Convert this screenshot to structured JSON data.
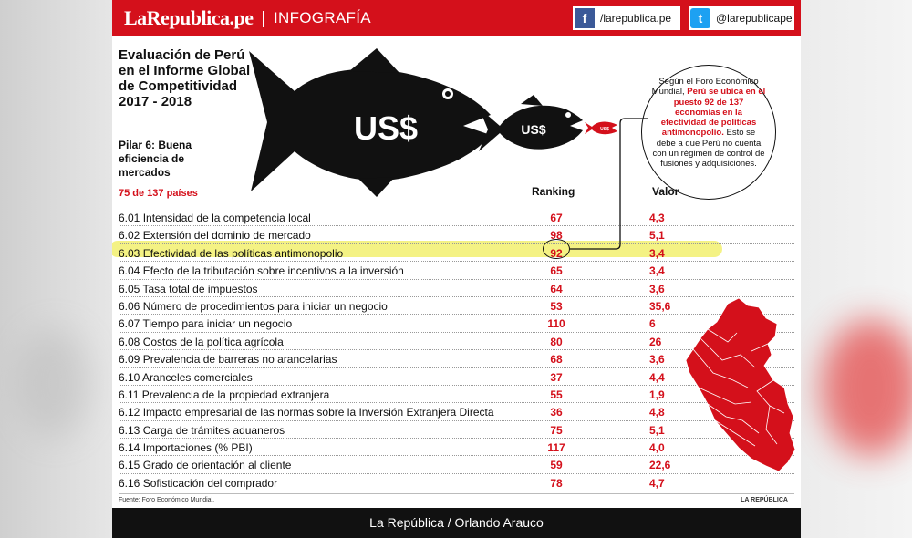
{
  "header": {
    "logo": "LaRepublica.pe",
    "section": "INFOGRAFÍA",
    "facebook_handle": "/larepublica.pe",
    "twitter_handle": "@larepublicape",
    "facebook_icon": "facebook-icon",
    "twitter_icon": "twitter-icon"
  },
  "title": "Evaluación de Perú en el Informe Global de Competitividad 2017 - 2018",
  "pillar": "Pilar 6: Buena eficiencia de mercados",
  "countries_note": "75 de 137 países",
  "fish": {
    "big_label": "US$",
    "medium_label": "US$",
    "small_label": "US$"
  },
  "callout": {
    "pre": "Según el Foro Económico Mundial,",
    "highlight": "Perú se ubica en el puesto 92 de 137 economías en la efectividad de políticas antimonopolio.",
    "post": "Esto se debe a que Perú no cuenta con un régimen de control de fusiones y adquisiciones."
  },
  "columns": {
    "ranking": "Ranking",
    "valor": "Valor"
  },
  "rows": [
    {
      "label": "6.01 Intensidad de la competencia local",
      "ranking": "67",
      "valor": "4,3"
    },
    {
      "label": "6.02 Extensión del dominio de mercado",
      "ranking": "98",
      "valor": "5,1"
    },
    {
      "label": "6.03 Efectividad de las políticas antimonopolio",
      "ranking": "92",
      "valor": "3,4"
    },
    {
      "label": "6.04 Efecto de la tributación sobre incentivos a la inversión",
      "ranking": "65",
      "valor": "3,4"
    },
    {
      "label": "6.05 Tasa total de impuestos",
      "ranking": "64",
      "valor": "3,6"
    },
    {
      "label": "6.06 Número de procedimientos para iniciar un negocio",
      "ranking": "53",
      "valor": "35,6"
    },
    {
      "label": "6.07 Tiempo para iniciar un negocio",
      "ranking": "110",
      "valor": "6"
    },
    {
      "label": "6.08 Costos de la política agrícola",
      "ranking": "80",
      "valor": "26"
    },
    {
      "label": "6.09 Prevalencia de barreras no arancelarias",
      "ranking": "68",
      "valor": "3,6"
    },
    {
      "label": "6.10 Aranceles comerciales",
      "ranking": "37",
      "valor": "4,4"
    },
    {
      "label": "6.11 Prevalencia de la propiedad extranjera",
      "ranking": "55",
      "valor": "1,9"
    },
    {
      "label": "6.12 Impacto empresarial de las normas sobre la Inversión Extranjera Directa",
      "ranking": "36",
      "valor": "4,8"
    },
    {
      "label": "6.13 Carga de trámites aduaneros",
      "ranking": "75",
      "valor": "5,1"
    },
    {
      "label": "6.14 Importaciones (% PBI)",
      "ranking": "117",
      "valor": "4,0"
    },
    {
      "label": "6.15 Grado de orientación al cliente",
      "ranking": "59",
      "valor": "22,6"
    },
    {
      "label": "6.16 Sofisticación del comprador",
      "ranking": "78",
      "valor": "4,7"
    }
  ],
  "source": "Fuente: Foro Económico Mundial.",
  "brand_small": "LA REPÚBLICA",
  "footer": "La República / Orlando Arauco",
  "colors": {
    "accent_red": "#d4101b",
    "highlight_yellow": "#f2f06e",
    "map_red": "#d4101b"
  }
}
